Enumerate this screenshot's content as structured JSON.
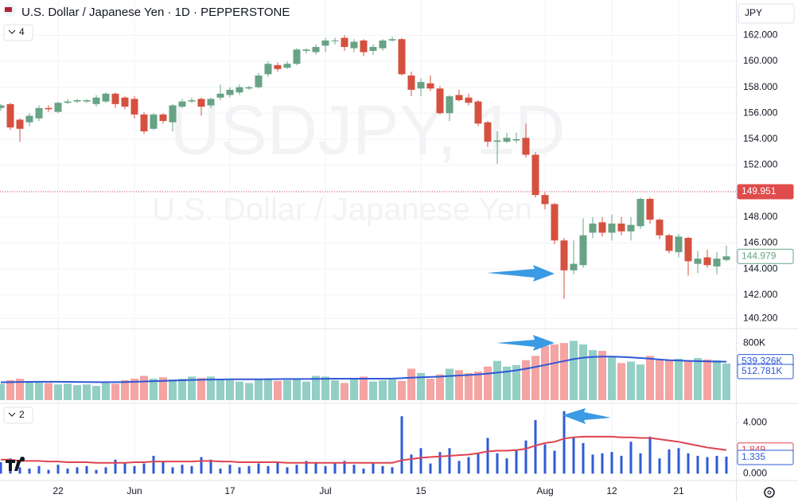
{
  "header": {
    "title": "U.S. Dollar / Japanese Yen · 1D · PEPPERSTONE",
    "currency": "JPY",
    "main_indicators": 4
  },
  "chart_data": [
    {
      "type": "candlestick",
      "watermark": [
        "USDJPY, 1D",
        "U.S. Dollar / Japanese Yen"
      ],
      "categories": [
        null,
        null,
        null,
        null,
        null,
        null,
        "22",
        null,
        null,
        null,
        null,
        null,
        null,
        null,
        "Jun",
        null,
        null,
        null,
        null,
        null,
        null,
        null,
        null,
        null,
        "17",
        null,
        null,
        null,
        null,
        null,
        null,
        null,
        null,
        null,
        "Jul",
        null,
        null,
        null,
        null,
        null,
        null,
        null,
        null,
        null,
        "15",
        null,
        null,
        null,
        null,
        null,
        null,
        null,
        null,
        null,
        null,
        null,
        null,
        "Aug",
        null,
        null,
        null,
        null,
        null,
        null,
        "12",
        null,
        null,
        null,
        null,
        null,
        null,
        "21",
        null,
        null,
        null,
        null,
        null
      ],
      "open": [
        156.4,
        156.7,
        155.5,
        155.3,
        155.6,
        156.4,
        156.1,
        156.8,
        156.9,
        156.9,
        156.7,
        156.9,
        157.5,
        157.2,
        157.1,
        155.9,
        154.8,
        155.9,
        155.3,
        156.5,
        156.9,
        157.1,
        156.6,
        157.2,
        157.4,
        157.6,
        157.9,
        158.0,
        159.0,
        159.7,
        159.5,
        159.8,
        160.8,
        160.7,
        161.2,
        161.6,
        161.8,
        161.0,
        161.6,
        160.8,
        161.0,
        161.6,
        161.7,
        158.9,
        157.9,
        158.3,
        157.9,
        156.0,
        157.4,
        157.2,
        156.9,
        155.3,
        153.8,
        153.8,
        153.9,
        154.1,
        152.8,
        149.7,
        149.0,
        146.2,
        143.9,
        144.3,
        146.8,
        147.6,
        146.8,
        147.5,
        146.9,
        147.3,
        149.4,
        147.8,
        146.6,
        145.3,
        146.4,
        144.4,
        144.9,
        144.2,
        144.7
      ],
      "high": [
        156.7,
        156.8,
        155.6,
        156.0,
        156.6,
        156.6,
        156.9,
        157.1,
        157.1,
        157.1,
        157.4,
        157.6,
        157.6,
        157.3,
        157.3,
        156.1,
        156.0,
        156.0,
        156.7,
        157.1,
        157.2,
        157.2,
        157.2,
        158.2,
        158.0,
        158.2,
        158.1,
        159.1,
        160.0,
        159.9,
        160.0,
        161.0,
        161.0,
        161.3,
        161.8,
        161.8,
        162.0,
        161.7,
        161.7,
        161.3,
        161.7,
        161.9,
        161.8,
        159.2,
        158.7,
        158.9,
        158.1,
        157.4,
        157.8,
        157.5,
        157.0,
        155.4,
        154.6,
        154.5,
        154.5,
        155.2,
        153.0,
        149.9,
        149.1,
        146.4,
        146.2,
        147.9,
        148.0,
        148.0,
        148.2,
        148.0,
        148.0,
        149.5,
        149.5,
        147.9,
        146.7,
        146.7,
        146.5,
        145.4,
        145.5,
        145.3,
        145.8
      ],
      "low": [
        156.2,
        154.7,
        153.8,
        155.0,
        155.4,
        156.1,
        156.0,
        156.7,
        156.8,
        156.8,
        156.5,
        156.8,
        156.4,
        156.3,
        155.6,
        154.4,
        154.7,
        155.2,
        154.6,
        156.4,
        156.8,
        155.8,
        156.4,
        157.0,
        157.2,
        157.4,
        157.8,
        157.9,
        158.8,
        159.2,
        159.4,
        159.7,
        160.6,
        160.5,
        160.7,
        161.3,
        160.8,
        160.7,
        160.4,
        160.5,
        160.8,
        161.5,
        158.9,
        157.3,
        157.3,
        157.7,
        155.9,
        155.4,
        156.9,
        156.6,
        155.0,
        153.4,
        152.1,
        153.7,
        153.7,
        152.6,
        149.5,
        148.6,
        145.9,
        141.7,
        143.6,
        144.1,
        146.4,
        146.5,
        146.2,
        146.6,
        146.2,
        147.1,
        147.5,
        146.3,
        145.2,
        144.9,
        143.5,
        143.7,
        144.1,
        143.6,
        144.6
      ],
      "close": [
        156.6,
        154.9,
        154.8,
        155.8,
        156.4,
        156.3,
        156.8,
        156.9,
        157.0,
        157.0,
        157.2,
        157.5,
        156.7,
        156.5,
        155.9,
        154.6,
        155.9,
        155.4,
        156.6,
        156.9,
        157.0,
        156.5,
        157.1,
        157.5,
        157.8,
        158.0,
        158.0,
        158.9,
        159.8,
        159.4,
        159.8,
        160.9,
        160.9,
        161.1,
        161.6,
        161.6,
        161.1,
        161.5,
        160.7,
        161.1,
        161.6,
        161.7,
        159.0,
        157.8,
        158.4,
        157.9,
        156.0,
        157.3,
        157.0,
        156.8,
        155.2,
        153.8,
        153.9,
        154.1,
        154.0,
        152.8,
        149.7,
        149.0,
        146.2,
        143.9,
        144.4,
        146.6,
        147.5,
        146.8,
        147.5,
        146.9,
        147.4,
        149.4,
        147.8,
        146.6,
        145.4,
        146.5,
        144.6,
        144.8,
        144.3,
        144.8,
        144.979
      ],
      "up_color": "#67a384",
      "down_color": "#d6503f",
      "price_line": {
        "value": 149.951,
        "color": "#e04b4b"
      },
      "ylim": [
        139.6,
        163.0
      ],
      "yticks": [
        {
          "value": 162,
          "label": "162.000"
        },
        {
          "value": 160,
          "label": "160.000"
        },
        {
          "value": 158,
          "label": "158.000"
        },
        {
          "value": 156,
          "label": "156.000"
        },
        {
          "value": 154,
          "label": "154.000"
        },
        {
          "value": 152,
          "label": "152.000"
        },
        {
          "value": 150,
          "label": "150.000"
        },
        {
          "value": 148,
          "label": "148.000"
        },
        {
          "value": 146,
          "label": "146.000"
        },
        {
          "value": 144,
          "label": "144.000"
        },
        {
          "value": 142,
          "label": "142.000"
        },
        {
          "value": 140.2,
          "label": "140.200"
        }
      ],
      "grid": true
    },
    {
      "type": "volume",
      "series": [
        {
          "values": [
            230000,
            280000,
            300000,
            250000,
            260000,
            240000,
            220000,
            230000,
            210000,
            220000,
            200000,
            240000,
            230000,
            280000,
            300000,
            340000,
            300000,
            320000,
            290000,
            300000,
            330000,
            310000,
            330000,
            300000,
            280000,
            260000,
            240000,
            300000,
            290000,
            270000,
            280000,
            300000,
            260000,
            340000,
            330000,
            280000,
            240000,
            300000,
            330000,
            260000,
            280000,
            290000,
            270000,
            440000,
            380000,
            300000,
            360000,
            440000,
            420000,
            380000,
            400000,
            470000,
            550000,
            470000,
            490000,
            560000,
            620000,
            760000,
            780000,
            800000,
            830000,
            780000,
            700000,
            690000,
            600000,
            520000,
            540000,
            500000,
            620000,
            560000,
            560000,
            580000,
            560000,
            590000,
            570000,
            560000,
            512781
          ],
          "up_color": "#93cfc4",
          "down_color": "#f4a4a2",
          "last_label": "512.781K"
        },
        {
          "values": [
            250000,
            252000,
            255000,
            256000,
            258000,
            258000,
            257000,
            256000,
            255000,
            254000,
            252000,
            252000,
            252000,
            254000,
            258000,
            262000,
            266000,
            270000,
            274000,
            278000,
            282000,
            286000,
            288000,
            290000,
            292000,
            292000,
            292000,
            293000,
            294000,
            295000,
            296000,
            296000,
            297000,
            298000,
            299000,
            300000,
            300000,
            300000,
            300000,
            300000,
            300000,
            302000,
            308000,
            315000,
            320000,
            325000,
            330000,
            338000,
            345000,
            352000,
            360000,
            372000,
            385000,
            400000,
            418000,
            440000,
            465000,
            492000,
            520000,
            548000,
            575000,
            595000,
            605000,
            610000,
            610000,
            605000,
            598000,
            590000,
            580000,
            570000,
            560000,
            555000,
            550000,
            546000,
            543000,
            540000,
            539326
          ],
          "color": "#2f57d8",
          "last_label": "539.326K"
        }
      ],
      "ylim": [
        0,
        980000
      ],
      "yticks": [
        {
          "value": 800000,
          "label": "800K"
        }
      ]
    },
    {
      "type": "indicator",
      "collapsed_count": 2,
      "series": [
        {
          "values": [
            0.9,
            1.2,
            0.5,
            0.4,
            0.6,
            0.3,
            0.7,
            0.4,
            0.5,
            0.6,
            0.3,
            0.5,
            1.1,
            0.9,
            0.6,
            0.8,
            1.4,
            0.9,
            0.5,
            0.7,
            0.6,
            1.3,
            1.1,
            0.4,
            0.7,
            0.5,
            0.6,
            0.8,
            0.6,
            0.9,
            0.5,
            0.7,
            1.0,
            0.9,
            0.6,
            0.8,
            1.0,
            0.7,
            0.4,
            0.9,
            0.6,
            0.5,
            4.5,
            1.5,
            2.0,
            0.8,
            1.7,
            2.0,
            1.0,
            1.3,
            1.6,
            2.8,
            1.6,
            1.2,
            1.9,
            2.6,
            4.2,
            2.3,
            1.8,
            4.9,
            2.8,
            2.4,
            1.5,
            1.6,
            1.7,
            1.4,
            2.5,
            1.6,
            2.9,
            1.2,
            1.9,
            2.0,
            1.6,
            1.4,
            1.3,
            1.4,
            1.335
          ],
          "color": "#2e5bd6"
        },
        {
          "values": [
            1.1,
            1.1,
            1.0,
            1.0,
            1.0,
            0.95,
            0.95,
            0.9,
            0.9,
            0.9,
            0.85,
            0.85,
            0.85,
            0.85,
            0.9,
            0.9,
            0.95,
            0.95,
            0.95,
            0.95,
            0.95,
            1.0,
            1.0,
            0.95,
            0.95,
            0.9,
            0.9,
            0.9,
            0.9,
            0.9,
            0.85,
            0.85,
            0.85,
            0.85,
            0.85,
            0.85,
            0.85,
            0.85,
            0.85,
            0.85,
            0.85,
            0.85,
            1.05,
            1.15,
            1.25,
            1.3,
            1.35,
            1.4,
            1.45,
            1.5,
            1.6,
            1.75,
            1.8,
            1.8,
            1.85,
            1.95,
            2.2,
            2.4,
            2.5,
            2.75,
            2.85,
            2.9,
            2.9,
            2.9,
            2.9,
            2.85,
            2.85,
            2.8,
            2.8,
            2.7,
            2.6,
            2.5,
            2.35,
            2.2,
            2.05,
            1.95,
            1.849
          ],
          "color": "#e0434f"
        }
      ],
      "ylim": [
        -0.1,
        5.2
      ],
      "yticks": [
        {
          "value": 4,
          "label": "4.000"
        },
        {
          "value": 0,
          "label": "0.000"
        }
      ]
    }
  ]
}
